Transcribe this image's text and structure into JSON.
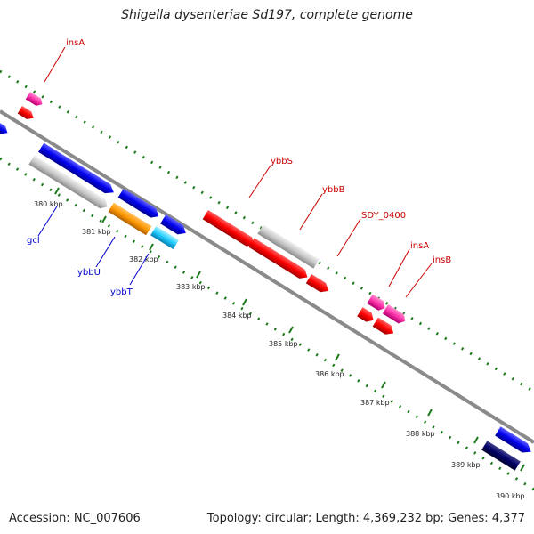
{
  "title": "Shigella dysenteriae Sd197, complete genome",
  "footer": {
    "accession": "Accession: NC_007606",
    "topology": "Topology: circular; Length: 4,369,232 bp; Genes: 4,377"
  },
  "colors": {
    "backbone": "#8a8a8a",
    "tick": "#1a7a1a",
    "red_label": "#cc0000",
    "blue_label": "#0000cc"
  },
  "ticks": [
    {
      "label": "380 kbp"
    },
    {
      "label": "381 kbp"
    },
    {
      "label": "382 kbp"
    },
    {
      "label": "383 kbp"
    },
    {
      "label": "384 kbp"
    },
    {
      "label": "385 kbp"
    },
    {
      "label": "386 kbp"
    },
    {
      "label": "387 kbp"
    },
    {
      "label": "388 kbp"
    },
    {
      "label": "389 kbp"
    },
    {
      "label": "390 kbp"
    }
  ],
  "genes": [
    {
      "label": "insA",
      "label_color": "red"
    },
    {
      "label": "gcl",
      "label_color": "blue"
    },
    {
      "label": "ybbU",
      "label_color": "blue"
    },
    {
      "label": "ybbT",
      "label_color": "blue"
    },
    {
      "label": "ybbS",
      "label_color": "red"
    },
    {
      "label": "ybbB",
      "label_color": "red"
    },
    {
      "label": "SDY_0400",
      "label_color": "red"
    },
    {
      "label": "insA",
      "label_color": "red"
    },
    {
      "label": "insB",
      "label_color": "red"
    }
  ]
}
